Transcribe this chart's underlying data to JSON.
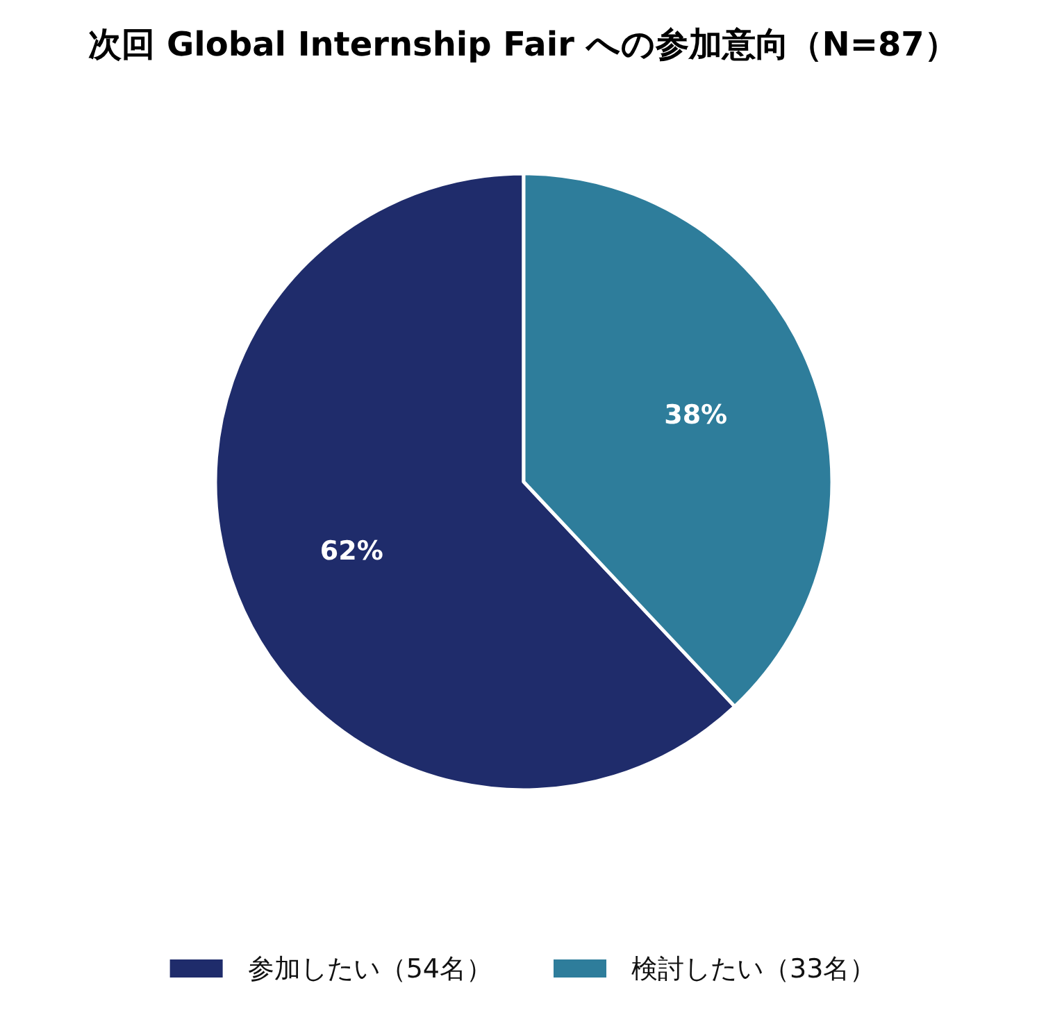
{
  "chart_data": {
    "type": "pie",
    "title": "次回 Global Internship Fair への参加意向（N=87）",
    "categories": [
      "参加したい（54名）",
      "検討したい（33名）"
    ],
    "values": [
      62,
      38
    ],
    "colors": [
      "#1f2c6b",
      "#2e7d9b"
    ],
    "value_labels": [
      "62%",
      "38%"
    ],
    "legend": "bottom"
  }
}
